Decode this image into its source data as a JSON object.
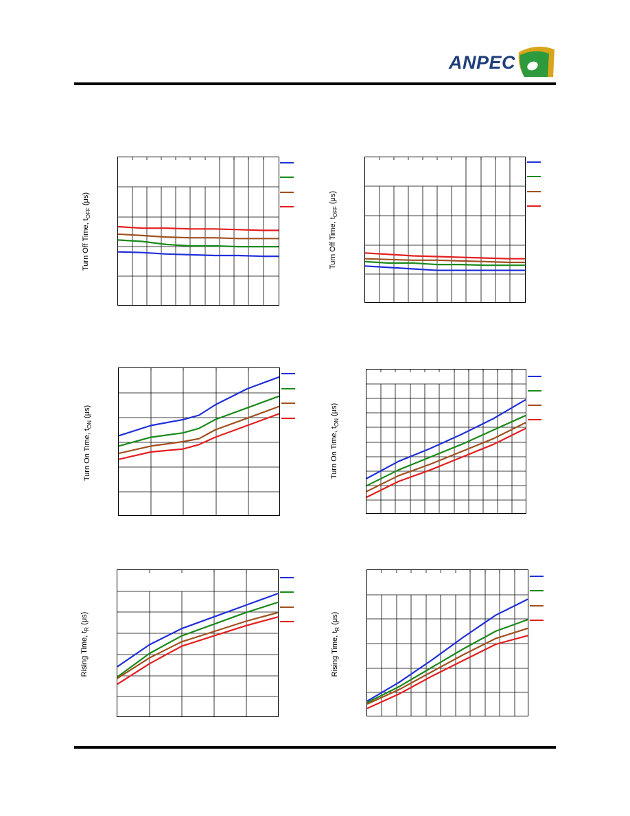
{
  "header": {
    "brand": "ANPEC",
    "brand_color": "#1f3f7a",
    "logo_colors": {
      "outer": "#d8a51c",
      "inner": "#2e9a3e",
      "dot": "#ffffff"
    }
  },
  "charts": [
    {
      "id": "c1",
      "ylabel_main": "Turn Off Time, t",
      "ylabel_sub": "OFF",
      "ylabel_unit": " (μs)"
    },
    {
      "id": "c2",
      "ylabel_main": "Turn Off Time, t",
      "ylabel_sub": "OFF",
      "ylabel_unit": " (μs)"
    },
    {
      "id": "c3",
      "ylabel_main": "Turn On Time, t",
      "ylabel_sub": "ON",
      "ylabel_unit": " (μs)"
    },
    {
      "id": "c4",
      "ylabel_main": "Turn On Time, t",
      "ylabel_sub": "ON",
      "ylabel_unit": " (μs)"
    },
    {
      "id": "c5",
      "ylabel_main": "Rising Time, t",
      "ylabel_sub": "R",
      "ylabel_unit": " (μs)"
    },
    {
      "id": "c6",
      "ylabel_main": "Rising Time, t",
      "ylabel_sub": "R",
      "ylabel_unit": " (μs)"
    }
  ],
  "series_colors": [
    "#1f2fd8",
    "#1a8a1a",
    "#a0501e",
    "#e41e1e"
  ],
  "chart_data": [
    {
      "type": "line",
      "ylim": [
        0,
        10
      ],
      "xlim": [
        0,
        100
      ],
      "series": [
        {
          "color": "#1f2fd8",
          "x": [
            0,
            15,
            30,
            45,
            60,
            75,
            90,
            100
          ],
          "values": [
            3.6,
            3.55,
            3.45,
            3.4,
            3.35,
            3.35,
            3.3,
            3.3
          ]
        },
        {
          "color": "#1a8a1a",
          "x": [
            0,
            15,
            30,
            45,
            60,
            75,
            90,
            100
          ],
          "values": [
            4.4,
            4.3,
            4.1,
            4.0,
            4.0,
            3.95,
            3.95,
            3.95
          ]
        },
        {
          "color": "#a0501e",
          "x": [
            0,
            15,
            30,
            45,
            60,
            75,
            90,
            100
          ],
          "values": [
            4.8,
            4.7,
            4.6,
            4.55,
            4.55,
            4.5,
            4.5,
            4.5
          ]
        },
        {
          "color": "#e41e1e",
          "x": [
            0,
            15,
            30,
            45,
            60,
            75,
            90,
            100
          ],
          "values": [
            5.3,
            5.2,
            5.2,
            5.15,
            5.15,
            5.1,
            5.05,
            5.05
          ]
        }
      ]
    },
    {
      "type": "line",
      "ylim": [
        0,
        10
      ],
      "xlim": [
        0,
        100
      ],
      "series": [
        {
          "color": "#1f2fd8",
          "x": [
            0,
            15,
            30,
            45,
            60,
            75,
            90,
            100
          ],
          "values": [
            2.5,
            2.4,
            2.3,
            2.2,
            2.2,
            2.2,
            2.2,
            2.2
          ]
        },
        {
          "color": "#1a8a1a",
          "x": [
            0,
            15,
            30,
            45,
            60,
            75,
            90,
            100
          ],
          "values": [
            2.8,
            2.7,
            2.7,
            2.6,
            2.6,
            2.55,
            2.55,
            2.55
          ]
        },
        {
          "color": "#a0501e",
          "x": [
            0,
            15,
            30,
            45,
            60,
            75,
            90,
            100
          ],
          "values": [
            3.0,
            2.95,
            2.9,
            2.9,
            2.85,
            2.8,
            2.75,
            2.75
          ]
        },
        {
          "color": "#e41e1e",
          "x": [
            0,
            15,
            30,
            45,
            60,
            75,
            90,
            100
          ],
          "values": [
            3.4,
            3.3,
            3.2,
            3.15,
            3.1,
            3.05,
            3.0,
            3.0
          ]
        }
      ]
    },
    {
      "type": "line",
      "ylim": [
        0,
        10
      ],
      "xlim": [
        0,
        100
      ],
      "series": [
        {
          "color": "#1f2fd8",
          "x": [
            0,
            20,
            40,
            50,
            60,
            80,
            100
          ],
          "values": [
            5.4,
            6.1,
            6.5,
            6.8,
            7.5,
            8.6,
            9.4
          ]
        },
        {
          "color": "#1a8a1a",
          "x": [
            0,
            20,
            40,
            50,
            60,
            80,
            100
          ],
          "values": [
            4.7,
            5.3,
            5.6,
            5.9,
            6.5,
            7.3,
            8.1
          ]
        },
        {
          "color": "#a0501e",
          "x": [
            0,
            20,
            40,
            50,
            60,
            80,
            100
          ],
          "values": [
            4.2,
            4.7,
            5.0,
            5.2,
            5.8,
            6.6,
            7.4
          ]
        },
        {
          "color": "#e41e1e",
          "x": [
            0,
            20,
            40,
            50,
            60,
            80,
            100
          ],
          "values": [
            3.8,
            4.3,
            4.5,
            4.8,
            5.3,
            6.1,
            6.9
          ]
        }
      ]
    },
    {
      "type": "line",
      "ylim": [
        0,
        10
      ],
      "xlim": [
        0,
        100
      ],
      "series": [
        {
          "color": "#1f2fd8",
          "x": [
            0,
            20,
            40,
            60,
            80,
            100
          ],
          "values": [
            2.4,
            3.6,
            4.5,
            5.5,
            6.6,
            7.9
          ]
        },
        {
          "color": "#1a8a1a",
          "x": [
            0,
            20,
            40,
            60,
            80,
            100
          ],
          "values": [
            1.9,
            3.0,
            3.9,
            4.8,
            5.8,
            6.8
          ]
        },
        {
          "color": "#a0501e",
          "x": [
            0,
            20,
            40,
            60,
            80,
            100
          ],
          "values": [
            1.5,
            2.6,
            3.4,
            4.3,
            5.2,
            6.3
          ]
        },
        {
          "color": "#e41e1e",
          "x": [
            0,
            20,
            40,
            60,
            80,
            100
          ],
          "values": [
            1.1,
            2.2,
            3.0,
            3.9,
            4.8,
            5.9
          ]
        }
      ]
    },
    {
      "type": "line",
      "ylim": [
        0,
        10
      ],
      "xlim": [
        0,
        100
      ],
      "series": [
        {
          "color": "#1f2fd8",
          "x": [
            0,
            20,
            40,
            60,
            80,
            100
          ],
          "values": [
            3.4,
            4.9,
            6.0,
            6.8,
            7.6,
            8.4
          ]
        },
        {
          "color": "#1a8a1a",
          "x": [
            0,
            20,
            40,
            60,
            80,
            100
          ],
          "values": [
            2.7,
            4.3,
            5.5,
            6.3,
            7.1,
            7.8
          ]
        },
        {
          "color": "#a0501e",
          "x": [
            0,
            20,
            40,
            60,
            80,
            100
          ],
          "values": [
            2.6,
            4.0,
            5.1,
            5.8,
            6.5,
            7.1
          ]
        },
        {
          "color": "#e41e1e",
          "x": [
            0,
            20,
            40,
            60,
            80,
            100
          ],
          "values": [
            2.2,
            3.6,
            4.8,
            5.5,
            6.2,
            6.8
          ]
        }
      ]
    },
    {
      "type": "line",
      "ylim": [
        0,
        10
      ],
      "xlim": [
        0,
        100
      ],
      "series": [
        {
          "color": "#1f2fd8",
          "x": [
            0,
            20,
            40,
            60,
            80,
            100
          ],
          "values": [
            1.0,
            2.3,
            3.8,
            5.4,
            6.9,
            8.0
          ]
        },
        {
          "color": "#1a8a1a",
          "x": [
            0,
            20,
            40,
            60,
            80,
            100
          ],
          "values": [
            0.9,
            2.0,
            3.3,
            4.6,
            5.8,
            6.6
          ]
        },
        {
          "color": "#a0501e",
          "x": [
            0,
            20,
            40,
            60,
            80,
            100
          ],
          "values": [
            0.8,
            1.8,
            3.0,
            4.2,
            5.3,
            6.0
          ]
        },
        {
          "color": "#e41e1e",
          "x": [
            0,
            20,
            40,
            60,
            80,
            100
          ],
          "values": [
            0.5,
            1.5,
            2.7,
            3.8,
            4.9,
            5.5
          ]
        }
      ]
    }
  ]
}
